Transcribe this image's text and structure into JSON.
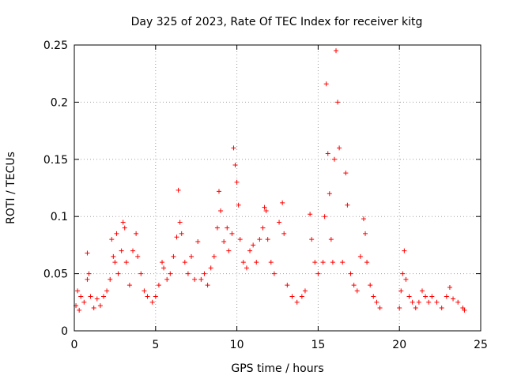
{
  "chart_data": {
    "type": "scatter",
    "title": "Day 325 of 2023, Rate Of TEC Index for receiver kitg",
    "xlabel": "GPS time / hours",
    "ylabel": "ROTI / TECUs",
    "xlim": [
      0,
      25
    ],
    "ylim": [
      0,
      0.25
    ],
    "xticks": [
      0,
      5,
      10,
      15,
      20,
      25
    ],
    "yticks": [
      0,
      0.05,
      0.1,
      0.15,
      0.2,
      0.25
    ],
    "xtick_labels": [
      "0",
      "5",
      "10",
      "15",
      "20",
      "25"
    ],
    "ytick_labels": [
      "0",
      "0.05",
      "0.1",
      "0.15",
      "0.2",
      "0.25"
    ],
    "grid": true,
    "marker": "+",
    "color": "#ff0000",
    "data_gap_hours": [
      19.0,
      19.9
    ],
    "series": [
      {
        "name": "ROTI",
        "points": [
          [
            0.1,
            0.022
          ],
          [
            0.2,
            0.035
          ],
          [
            0.3,
            0.018
          ],
          [
            0.4,
            0.03
          ],
          [
            0.6,
            0.025
          ],
          [
            0.8,
            0.045
          ],
          [
            0.8,
            0.068
          ],
          [
            0.9,
            0.05
          ],
          [
            1.0,
            0.03
          ],
          [
            1.2,
            0.02
          ],
          [
            1.4,
            0.028
          ],
          [
            1.6,
            0.022
          ],
          [
            1.8,
            0.03
          ],
          [
            2.0,
            0.035
          ],
          [
            2.2,
            0.045
          ],
          [
            2.3,
            0.08
          ],
          [
            2.4,
            0.065
          ],
          [
            2.5,
            0.06
          ],
          [
            2.6,
            0.085
          ],
          [
            2.7,
            0.05
          ],
          [
            2.9,
            0.07
          ],
          [
            3.0,
            0.095
          ],
          [
            3.1,
            0.09
          ],
          [
            3.2,
            0.06
          ],
          [
            3.4,
            0.04
          ],
          [
            3.6,
            0.07
          ],
          [
            3.8,
            0.085
          ],
          [
            3.9,
            0.065
          ],
          [
            4.1,
            0.05
          ],
          [
            4.3,
            0.035
          ],
          [
            4.5,
            0.03
          ],
          [
            4.8,
            0.025
          ],
          [
            5.0,
            0.03
          ],
          [
            5.2,
            0.04
          ],
          [
            5.4,
            0.06
          ],
          [
            5.5,
            0.055
          ],
          [
            5.7,
            0.045
          ],
          [
            5.9,
            0.05
          ],
          [
            6.1,
            0.065
          ],
          [
            6.3,
            0.082
          ],
          [
            6.4,
            0.123
          ],
          [
            6.5,
            0.095
          ],
          [
            6.6,
            0.085
          ],
          [
            6.8,
            0.06
          ],
          [
            7.0,
            0.05
          ],
          [
            7.2,
            0.065
          ],
          [
            7.4,
            0.045
          ],
          [
            7.6,
            0.078
          ],
          [
            7.8,
            0.045
          ],
          [
            8.0,
            0.05
          ],
          [
            8.2,
            0.04
          ],
          [
            8.4,
            0.055
          ],
          [
            8.6,
            0.065
          ],
          [
            8.8,
            0.09
          ],
          [
            8.9,
            0.122
          ],
          [
            9.0,
            0.105
          ],
          [
            9.2,
            0.078
          ],
          [
            9.4,
            0.09
          ],
          [
            9.5,
            0.07
          ],
          [
            9.7,
            0.085
          ],
          [
            9.8,
            0.16
          ],
          [
            9.9,
            0.145
          ],
          [
            10.0,
            0.13
          ],
          [
            10.1,
            0.11
          ],
          [
            10.2,
            0.08
          ],
          [
            10.4,
            0.06
          ],
          [
            10.6,
            0.055
          ],
          [
            10.8,
            0.07
          ],
          [
            11.0,
            0.075
          ],
          [
            11.2,
            0.06
          ],
          [
            11.4,
            0.08
          ],
          [
            11.6,
            0.09
          ],
          [
            11.7,
            0.108
          ],
          [
            11.8,
            0.105
          ],
          [
            11.9,
            0.08
          ],
          [
            12.1,
            0.06
          ],
          [
            12.3,
            0.05
          ],
          [
            12.6,
            0.095
          ],
          [
            12.8,
            0.112
          ],
          [
            12.9,
            0.085
          ],
          [
            13.1,
            0.04
          ],
          [
            13.4,
            0.03
          ],
          [
            13.7,
            0.025
          ],
          [
            14.0,
            0.03
          ],
          [
            14.2,
            0.035
          ],
          [
            14.5,
            0.102
          ],
          [
            14.6,
            0.08
          ],
          [
            14.8,
            0.06
          ],
          [
            15.0,
            0.05
          ],
          [
            15.3,
            0.06
          ],
          [
            15.4,
            0.1
          ],
          [
            15.5,
            0.216
          ],
          [
            15.6,
            0.155
          ],
          [
            15.7,
            0.12
          ],
          [
            15.8,
            0.08
          ],
          [
            15.9,
            0.06
          ],
          [
            16.0,
            0.15
          ],
          [
            16.1,
            0.245
          ],
          [
            16.2,
            0.2
          ],
          [
            16.3,
            0.16
          ],
          [
            16.5,
            0.06
          ],
          [
            16.7,
            0.138
          ],
          [
            16.8,
            0.11
          ],
          [
            17.0,
            0.05
          ],
          [
            17.2,
            0.04
          ],
          [
            17.4,
            0.035
          ],
          [
            17.6,
            0.065
          ],
          [
            17.8,
            0.098
          ],
          [
            17.9,
            0.085
          ],
          [
            18.0,
            0.06
          ],
          [
            18.2,
            0.04
          ],
          [
            18.4,
            0.03
          ],
          [
            18.6,
            0.025
          ],
          [
            18.8,
            0.02
          ],
          [
            20.0,
            0.02
          ],
          [
            20.1,
            0.035
          ],
          [
            20.2,
            0.05
          ],
          [
            20.3,
            0.07
          ],
          [
            20.4,
            0.045
          ],
          [
            20.6,
            0.03
          ],
          [
            20.8,
            0.025
          ],
          [
            21.0,
            0.02
          ],
          [
            21.2,
            0.025
          ],
          [
            21.4,
            0.035
          ],
          [
            21.6,
            0.03
          ],
          [
            21.8,
            0.025
          ],
          [
            22.0,
            0.03
          ],
          [
            22.3,
            0.025
          ],
          [
            22.6,
            0.02
          ],
          [
            22.9,
            0.03
          ],
          [
            23.1,
            0.038
          ],
          [
            23.3,
            0.028
          ],
          [
            23.6,
            0.025
          ],
          [
            23.9,
            0.02
          ],
          [
            24.0,
            0.018
          ]
        ]
      }
    ]
  }
}
